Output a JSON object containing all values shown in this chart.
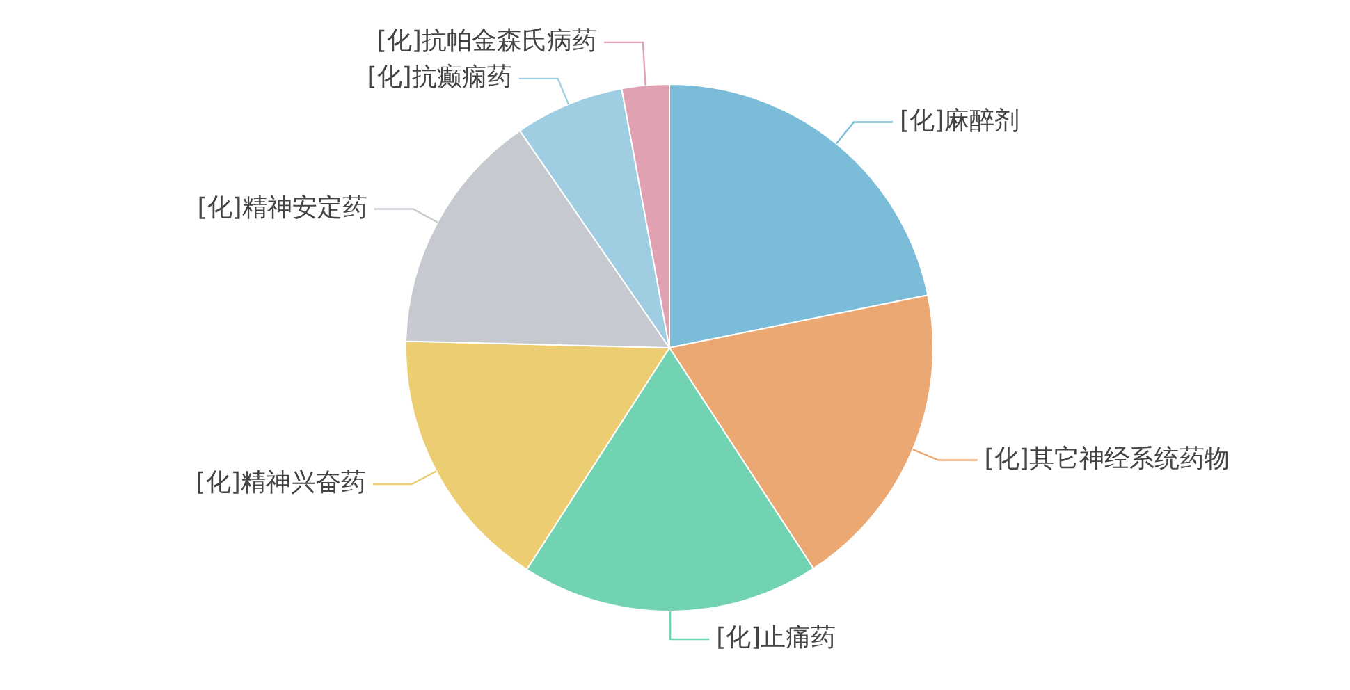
{
  "chart_data": {
    "type": "pie",
    "categories": [
      "[化]麻醉剂",
      "[化]其它神经系统药物",
      "[化]止痛药",
      "[化]精神兴奋药",
      "[化]精神安定药",
      "[化]抗癫痫药",
      "[化]抗帕金森氏病药"
    ],
    "values": [
      21.8,
      19.0,
      18.3,
      16.3,
      15.0,
      6.7,
      2.9
    ],
    "colors": [
      "#7bbcd9",
      "#eba872",
      "#72d3b3",
      "#eccd72",
      "#c6c9cf",
      "#9fcde2",
      "#e0a1b3"
    ],
    "legend": false
  }
}
